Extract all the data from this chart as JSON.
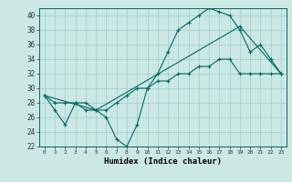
{
  "title": "",
  "xlabel": "Humidex (Indice chaleur)",
  "bg_color": "#cce8e4",
  "line_color": "#006666",
  "grid_color": "#99cccc",
  "xlim": [
    -0.5,
    23.5
  ],
  "ylim": [
    22,
    41
  ],
  "xticks": [
    0,
    1,
    2,
    3,
    4,
    5,
    6,
    7,
    8,
    9,
    10,
    11,
    12,
    13,
    14,
    15,
    16,
    17,
    18,
    19,
    20,
    21,
    22,
    23
  ],
  "yticks": [
    22,
    24,
    26,
    28,
    30,
    32,
    34,
    36,
    38,
    40
  ],
  "line1_x": [
    0,
    1,
    2,
    3,
    4,
    5,
    6,
    7,
    8,
    9,
    10,
    11,
    12,
    13,
    14,
    15,
    16,
    17,
    18,
    19,
    20,
    21,
    22,
    23
  ],
  "line1_y": [
    29,
    27,
    25,
    28,
    27,
    27,
    26,
    23,
    22,
    25,
    30,
    32,
    35,
    38,
    39,
    40,
    41,
    40.5,
    40,
    38,
    35,
    36,
    34,
    32
  ],
  "line2_x": [
    0,
    1,
    2,
    3,
    4,
    5,
    6,
    7,
    8,
    9,
    10,
    11,
    12,
    13,
    14,
    15,
    16,
    17,
    18,
    19,
    20,
    21,
    22,
    23
  ],
  "line2_y": [
    29,
    28,
    28,
    28,
    28,
    27,
    27,
    28,
    29,
    30,
    30,
    31,
    31,
    32,
    32,
    33,
    33,
    34,
    34,
    32,
    32,
    32,
    32,
    32
  ],
  "line3_x": [
    0,
    5,
    19,
    23
  ],
  "line3_y": [
    29,
    27,
    38.5,
    32
  ]
}
